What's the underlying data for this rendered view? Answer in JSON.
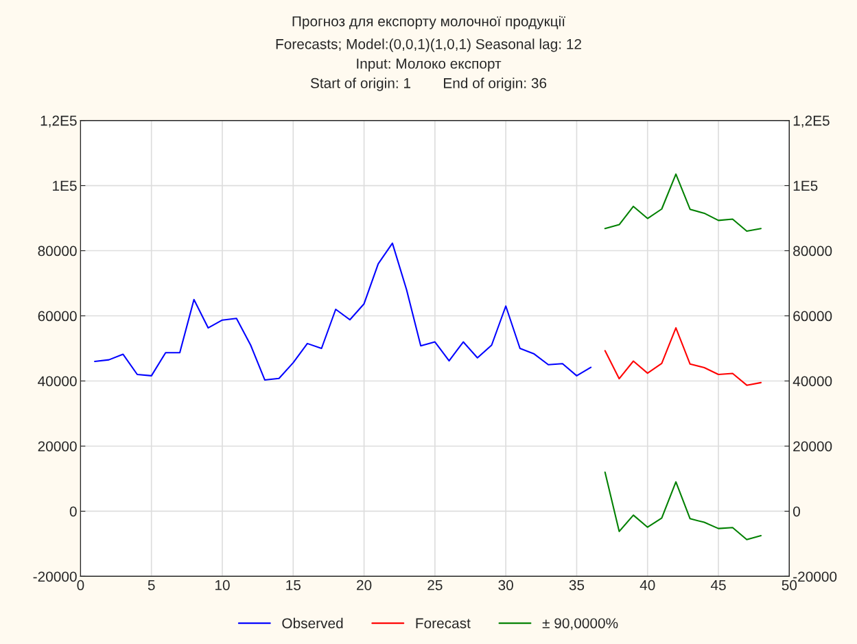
{
  "chart_data": {
    "type": "line",
    "title": "Прогноз для експорту молочної продукції",
    "subtitle": "Forecasts; Model:(0,0,1)(1,0,1) Seasonal lag: 12\nInput: Молоко експорт\nStart of origin: 1        End of origin: 36",
    "series": [
      {
        "name": "Observed",
        "color": "#0000ff",
        "x": [
          1,
          2,
          3,
          4,
          5,
          6,
          7,
          8,
          9,
          10,
          11,
          12,
          13,
          14,
          15,
          16,
          17,
          18,
          19,
          20,
          21,
          22,
          23,
          24,
          25,
          26,
          27,
          28,
          29,
          30,
          31,
          32,
          33,
          34,
          35,
          36
        ],
        "values": [
          46000,
          46500,
          48200,
          42000,
          41600,
          48700,
          48700,
          65000,
          56300,
          58700,
          59200,
          51000,
          40300,
          40800,
          45600,
          51500,
          50000,
          62000,
          58800,
          63700,
          76000,
          82300,
          68000,
          50800,
          52000,
          46200,
          52000,
          47100,
          51000,
          63000,
          50000,
          48300,
          45000,
          45300,
          41600,
          44200
        ]
      },
      {
        "name": "Forecast",
        "color": "#ff0000",
        "x": [
          37,
          38,
          39,
          40,
          41,
          42,
          43,
          44,
          45,
          46,
          47,
          48
        ],
        "values": [
          49300,
          40700,
          46100,
          42400,
          45400,
          56300,
          45200,
          44100,
          42000,
          42300,
          38700,
          39500
        ]
      },
      {
        "name": "± 90,0000%",
        "color": "#008000",
        "x": [
          37,
          38,
          39,
          40,
          41,
          42,
          43,
          44,
          45,
          46,
          47,
          48
        ],
        "values": [
          86800,
          88000,
          93600,
          89900,
          92800,
          103500,
          92700,
          91500,
          89300,
          89700,
          86000,
          86800
        ]
      },
      {
        "color": "#008000",
        "x": [
          37,
          38,
          39,
          40,
          41,
          42,
          43,
          44,
          45,
          46,
          47,
          48
        ],
        "values": [
          12000,
          -6200,
          -1200,
          -4900,
          -2100,
          9000,
          -2300,
          -3400,
          -5300,
          -5000,
          -8700,
          -7500
        ]
      }
    ],
    "xlim": [
      0,
      50
    ],
    "xticks": [
      0,
      5,
      10,
      15,
      20,
      25,
      30,
      35,
      40,
      45,
      50
    ],
    "ylim": [
      -20000,
      120000
    ],
    "yticks": [
      -20000,
      0,
      20000,
      40000,
      60000,
      80000,
      {
        "value": 100000,
        "label": "1E5"
      },
      {
        "value": 120000,
        "label": "1,2E5"
      }
    ],
    "y2lim": [
      -20000,
      120000
    ],
    "y2ticks": [
      -20000,
      0,
      20000,
      40000,
      60000,
      80000,
      {
        "value": 100000,
        "label": "1E5"
      },
      {
        "value": 120000,
        "label": "1,2E5"
      }
    ],
    "grid": true,
    "legend": "bottom",
    "marker": "none",
    "line_style": "solid"
  }
}
